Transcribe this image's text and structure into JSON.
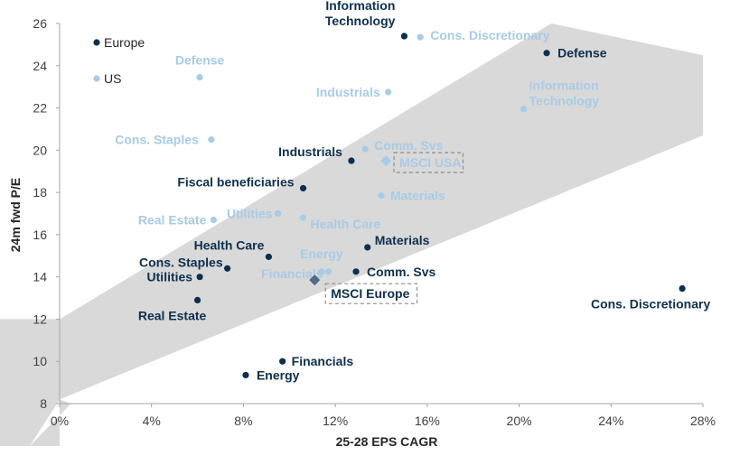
{
  "chart_data": {
    "type": "scatter",
    "xlabel": "25-28 EPS CAGR",
    "ylabel": "24m fwd P/E",
    "xlim": [
      0,
      28
    ],
    "ylim": [
      8,
      26
    ],
    "xticks": [
      0,
      4,
      8,
      12,
      16,
      20,
      24,
      28
    ],
    "xtick_labels": [
      "0%",
      "4%",
      "8%",
      "12%",
      "16%",
      "20%",
      "24%",
      "28%"
    ],
    "yticks": [
      8,
      10,
      12,
      14,
      16,
      18,
      20,
      22,
      24,
      26
    ],
    "ytick_labels": [
      "8",
      "10",
      "12",
      "14",
      "16",
      "18",
      "20",
      "22",
      "24",
      "26"
    ],
    "grid": false,
    "legend_position": "top-left",
    "band": {
      "lower": [
        [
          0,
          8.2
        ],
        [
          28,
          20.7
        ]
      ],
      "upper": [
        [
          0,
          12.0
        ],
        [
          28,
          26.0
        ]
      ],
      "upper_corner": [
        21.4,
        26.0
      ],
      "lower_corner": [
        28,
        24.5
      ],
      "color": "#d9d9d9"
    },
    "colors": {
      "europe": "#0d2f4f",
      "us": "#a8cbe6",
      "benchmark": "#7f7f7f"
    },
    "series": [
      {
        "name": "Europe",
        "color": "#0d2f4f",
        "points": [
          {
            "label": "Information\nTechnology",
            "x": 15.0,
            "y": 25.4,
            "anchor": "end"
          },
          {
            "label": "Defense",
            "x": 21.2,
            "y": 24.6,
            "anchor": "start"
          },
          {
            "label": "Industrials",
            "x": 12.7,
            "y": 19.5,
            "anchor": "end"
          },
          {
            "label": "Fiscal beneficiaries",
            "x": 10.6,
            "y": 18.2,
            "anchor": "end"
          },
          {
            "label": "Materials",
            "x": 13.4,
            "y": 15.4,
            "anchor": "start"
          },
          {
            "label": "Health Care",
            "x": 9.1,
            "y": 14.95,
            "anchor": "end"
          },
          {
            "label": "Cons. Staples",
            "x": 7.3,
            "y": 14.4,
            "anchor": "end"
          },
          {
            "label": "Utilities",
            "x": 6.1,
            "y": 14.0,
            "anchor": "end"
          },
          {
            "label": "Comm. Svs",
            "x": 12.9,
            "y": 14.25,
            "anchor": "start"
          },
          {
            "label": "Real Estate",
            "x": 6.0,
            "y": 12.9,
            "anchor": "middle"
          },
          {
            "label": "Cons. Discretionary",
            "x": 27.1,
            "y": 13.45,
            "anchor": "middle"
          },
          {
            "label": "Financials",
            "x": 9.7,
            "y": 10.0,
            "anchor": "start"
          },
          {
            "label": "Energy",
            "x": 8.1,
            "y": 9.35,
            "anchor": "start"
          }
        ]
      },
      {
        "name": "US",
        "color": "#a8cbe6",
        "points": [
          {
            "label": "Cons. Discretionary",
            "x": 15.7,
            "y": 25.35,
            "anchor": "start"
          },
          {
            "label": "Defense",
            "x": 6.1,
            "y": 23.45,
            "anchor": "middle"
          },
          {
            "label": "Industrials",
            "x": 14.3,
            "y": 22.75,
            "anchor": "end"
          },
          {
            "label": "Information\nTechnology",
            "x": 20.2,
            "y": 21.95,
            "anchor": "start"
          },
          {
            "label": "Cons. Staples",
            "x": 6.6,
            "y": 20.5,
            "anchor": "end"
          },
          {
            "label": "Comm. Svs",
            "x": 13.3,
            "y": 20.05,
            "anchor": "start"
          },
          {
            "label": "Materials",
            "x": 14.0,
            "y": 17.85,
            "anchor": "start"
          },
          {
            "label": "Utilities",
            "x": 9.5,
            "y": 17.0,
            "anchor": "end"
          },
          {
            "label": "Real Estate",
            "x": 6.7,
            "y": 16.7,
            "anchor": "end"
          },
          {
            "label": "Health Care",
            "x": 10.6,
            "y": 16.8,
            "anchor": "start"
          },
          {
            "label": "Energy",
            "x": 11.4,
            "y": 14.25,
            "anchor": "middle"
          },
          {
            "label": "Financials",
            "x": 11.7,
            "y": 14.25,
            "anchor": "end"
          }
        ]
      }
    ],
    "benchmarks": [
      {
        "label": "MSCI USA",
        "x": 14.2,
        "y": 19.5,
        "color": "#a8cbe6",
        "label_color": "#a8cbe6"
      },
      {
        "label": "MSCI Europe",
        "x": 11.1,
        "y": 13.85,
        "color": "#506c86",
        "label_color": "#0d2f4f"
      }
    ],
    "legend": [
      {
        "name": "Europe",
        "color": "#0d2f4f"
      },
      {
        "name": "US",
        "color": "#a8cbe6"
      }
    ]
  }
}
